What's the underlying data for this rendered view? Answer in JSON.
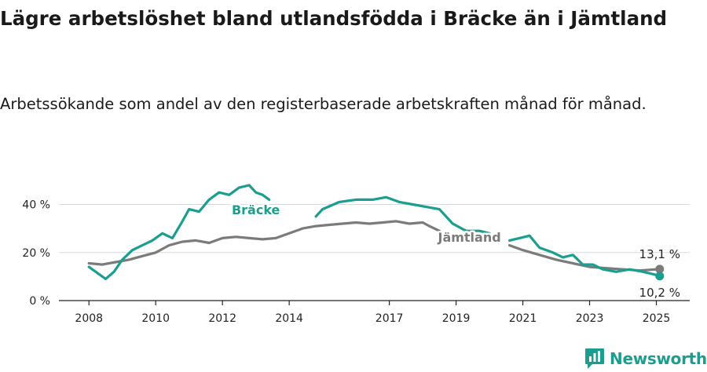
{
  "header": {
    "title": "Lägre arbetslöshet bland utlandsfödda i Bräcke än i Jämtland",
    "subtitle": "Arbetssökande som andel av den registerbaserade arbetskraften månad för månad."
  },
  "brand": {
    "name": "Newsworthy",
    "color": "#1b9e8f",
    "icon": "newsworthy-logo-icon"
  },
  "chart_data": {
    "type": "line",
    "title": "Lägre arbetslöshet bland utlandsfödda i Bräcke än i Jämtland",
    "subtitle": "Arbetssökande som andel av den registerbaserade arbetskraften månad för månad.",
    "xlabel": "",
    "ylabel": "",
    "x_ticks": [
      "2008",
      "2010",
      "2012",
      "2014",
      "2017",
      "2019",
      "2021",
      "2023",
      "2025"
    ],
    "x_tick_values": [
      2008,
      2010,
      2012,
      2014,
      2017,
      2019,
      2021,
      2023,
      2025
    ],
    "y_ticks": [
      "0 %",
      "20 %",
      "40 %"
    ],
    "y_tick_values": [
      0,
      20,
      40
    ],
    "xlim": [
      2007.1,
      2026
    ],
    "ylim": [
      0,
      48
    ],
    "grid": "horizontal",
    "legend": "inline labels",
    "series": [
      {
        "name": "Bräcke",
        "color": "#1b9e8f",
        "label_pos": [
          2013,
          36
        ],
        "end_label": "10,2 %",
        "points": [
          [
            2008.0,
            14
          ],
          [
            2008.3,
            11
          ],
          [
            2008.5,
            9
          ],
          [
            2008.75,
            12
          ],
          [
            2009.0,
            17
          ],
          [
            2009.3,
            21
          ],
          [
            2009.6,
            23
          ],
          [
            2009.9,
            25
          ],
          [
            2010.2,
            28
          ],
          [
            2010.5,
            26
          ],
          [
            2010.8,
            33
          ],
          [
            2011.0,
            38
          ],
          [
            2011.3,
            37
          ],
          [
            2011.6,
            42
          ],
          [
            2011.9,
            45
          ],
          [
            2012.2,
            44
          ],
          [
            2012.5,
            47
          ],
          [
            2012.8,
            48
          ],
          [
            2013.0,
            45
          ],
          [
            2013.2,
            44
          ],
          [
            2013.4,
            42
          ],
          null,
          [
            2014.8,
            35
          ],
          [
            2015.0,
            38
          ],
          [
            2015.5,
            41
          ],
          [
            2016.0,
            42
          ],
          [
            2016.5,
            42
          ],
          [
            2016.9,
            43
          ],
          [
            2017.3,
            41
          ],
          [
            2017.7,
            40
          ],
          [
            2018.1,
            39
          ],
          [
            2018.5,
            38
          ],
          [
            2018.9,
            32
          ],
          [
            2019.3,
            29
          ],
          [
            2019.7,
            29
          ],
          [
            2020.0,
            28
          ],
          null,
          [
            2020.6,
            25
          ],
          [
            2020.9,
            26
          ],
          [
            2021.2,
            27
          ],
          [
            2021.5,
            22
          ],
          [
            2021.9,
            20
          ],
          [
            2022.2,
            18
          ],
          [
            2022.5,
            19
          ],
          [
            2022.8,
            15
          ],
          [
            2023.1,
            15
          ],
          [
            2023.4,
            13
          ],
          [
            2023.8,
            12
          ],
          [
            2024.2,
            13
          ],
          [
            2024.6,
            12
          ],
          [
            2024.9,
            11
          ],
          [
            2025.1,
            10.2
          ]
        ]
      },
      {
        "name": "Jämtland",
        "color": "#7b7b7b",
        "label_pos": [
          2019.4,
          24.5
        ],
        "end_label": "13,1 %",
        "points": [
          [
            2008.0,
            15.5
          ],
          [
            2008.4,
            15
          ],
          [
            2008.8,
            16
          ],
          [
            2009.2,
            17
          ],
          [
            2009.6,
            18.5
          ],
          [
            2010.0,
            20
          ],
          [
            2010.4,
            23
          ],
          [
            2010.8,
            24.5
          ],
          [
            2011.2,
            25
          ],
          [
            2011.6,
            24
          ],
          [
            2012.0,
            26
          ],
          [
            2012.4,
            26.5
          ],
          [
            2012.8,
            26
          ],
          [
            2013.2,
            25.5
          ],
          [
            2013.6,
            26
          ],
          [
            2014.0,
            28
          ],
          [
            2014.4,
            30
          ],
          [
            2014.8,
            31
          ],
          [
            2015.2,
            31.5
          ],
          [
            2015.6,
            32
          ],
          [
            2016.0,
            32.5
          ],
          [
            2016.4,
            32
          ],
          [
            2016.8,
            32.5
          ],
          [
            2017.2,
            33
          ],
          [
            2017.6,
            32
          ],
          [
            2018.0,
            32.5
          ],
          [
            2018.2,
            31
          ],
          [
            2018.5,
            29
          ],
          null,
          [
            2020.6,
            23
          ],
          [
            2021.0,
            21
          ],
          [
            2021.5,
            19
          ],
          [
            2022.0,
            17
          ],
          [
            2022.5,
            15.5
          ],
          [
            2023.0,
            14
          ],
          [
            2023.5,
            13.5
          ],
          [
            2024.0,
            13
          ],
          [
            2024.5,
            12.5
          ],
          [
            2025.1,
            13.1
          ]
        ]
      }
    ]
  }
}
